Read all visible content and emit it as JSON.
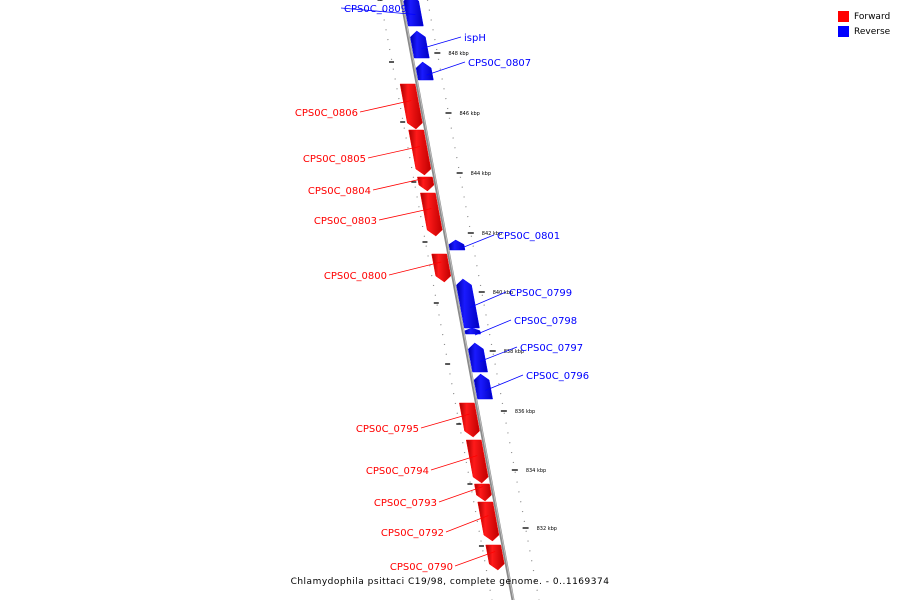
{
  "caption": "Chlamydophila psittaci C19/98, complete genome. - 0..1169374",
  "legend": {
    "forward": {
      "label": "Forward",
      "color": "#ff0000"
    },
    "reverse": {
      "label": "Reverse",
      "color": "#0000ff"
    }
  },
  "ticks": [
    "848 kbp",
    "846 kbp",
    "844 kbp",
    "842 kbp",
    "840 kbp",
    "838 kbp",
    "836 kbp",
    "834 kbp",
    "832 kbp"
  ],
  "genes": [
    {
      "name": "CPS0C_0809",
      "strand": "reverse"
    },
    {
      "name": "ispH",
      "strand": "reverse"
    },
    {
      "name": "CPS0C_0807",
      "strand": "reverse"
    },
    {
      "name": "CPS0C_0806",
      "strand": "forward"
    },
    {
      "name": "CPS0C_0805",
      "strand": "forward"
    },
    {
      "name": "CPS0C_0804",
      "strand": "forward"
    },
    {
      "name": "CPS0C_0803",
      "strand": "forward"
    },
    {
      "name": "CPS0C_0801",
      "strand": "reverse"
    },
    {
      "name": "CPS0C_0800",
      "strand": "forward"
    },
    {
      "name": "CPS0C_0799",
      "strand": "reverse"
    },
    {
      "name": "CPS0C_0798",
      "strand": "reverse"
    },
    {
      "name": "CPS0C_0797",
      "strand": "reverse"
    },
    {
      "name": "CPS0C_0796",
      "strand": "reverse"
    },
    {
      "name": "CPS0C_0795",
      "strand": "forward"
    },
    {
      "name": "CPS0C_0794",
      "strand": "forward"
    },
    {
      "name": "CPS0C_0793",
      "strand": "forward"
    },
    {
      "name": "CPS0C_0792",
      "strand": "forward"
    },
    {
      "name": "CPS0C_0790",
      "strand": "forward"
    }
  ]
}
